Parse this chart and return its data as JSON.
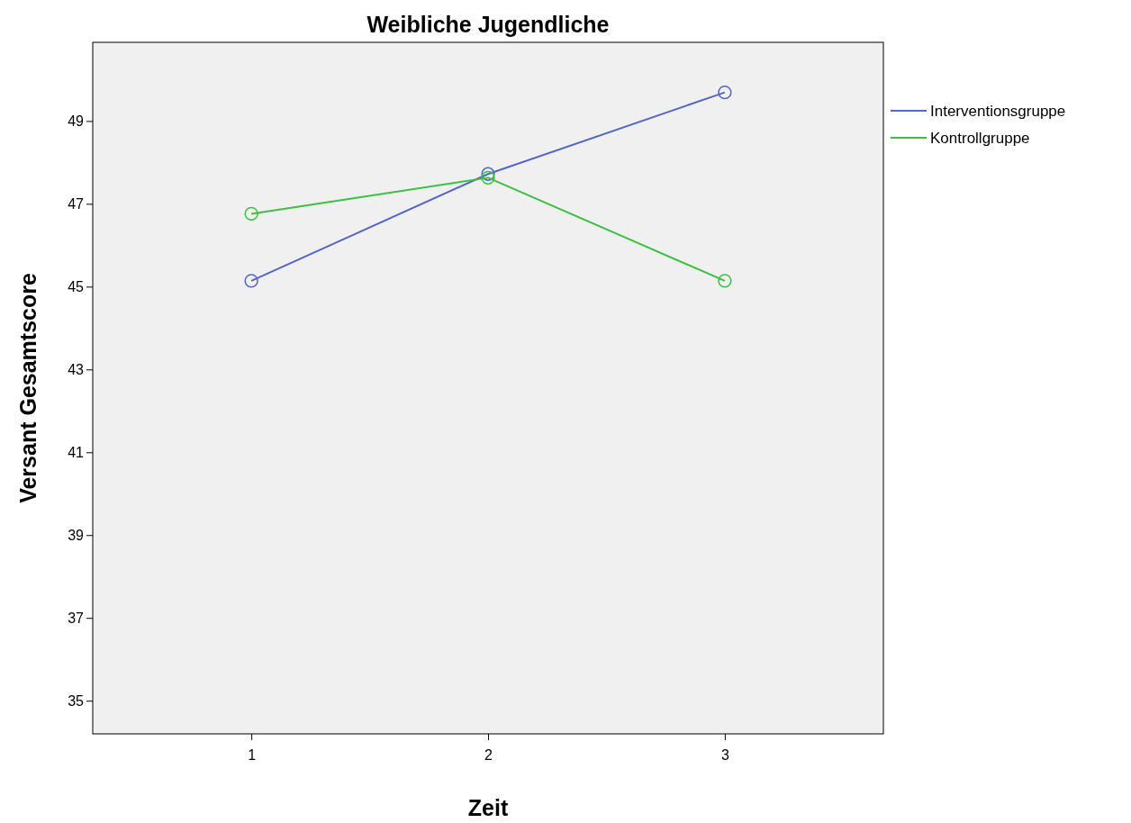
{
  "chart_data": {
    "type": "line",
    "title": "Weibliche Jugendliche",
    "xlabel": "Zeit",
    "ylabel": "Versant Gesamtscore",
    "categories": [
      "1",
      "2",
      "3"
    ],
    "series": [
      {
        "name": "Interventionsgruppe",
        "color": "#5566c4",
        "values": [
          45.14,
          47.72,
          49.69
        ]
      },
      {
        "name": "Kontrollgruppe",
        "color": "#3cc043",
        "values": [
          46.76,
          47.63,
          45.14
        ]
      }
    ],
    "ylim": [
      34.2,
      50.9
    ],
    "yticks": [
      35,
      37,
      39,
      41,
      43,
      45,
      47,
      49
    ],
    "grid": false,
    "legend": "right",
    "marker": "circle",
    "line_style": "solid"
  }
}
